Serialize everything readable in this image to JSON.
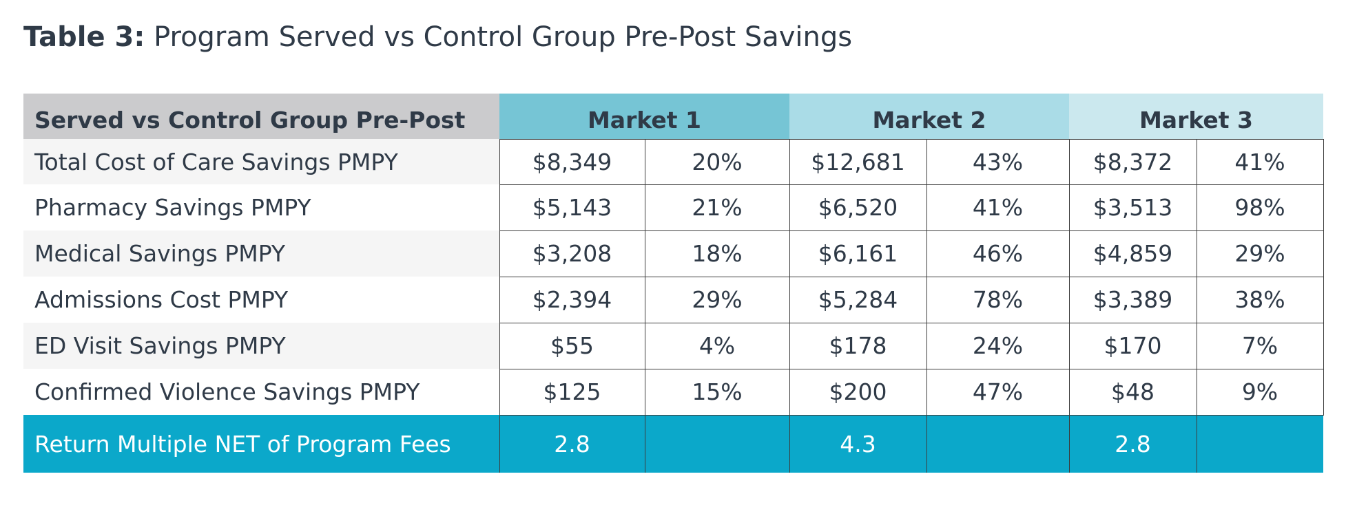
{
  "title": {
    "label": "Table 3:",
    "text": "Program Served vs Control Group Pre-Post Savings"
  },
  "table": {
    "corner_header": "Served vs Control Group Pre-Post",
    "markets": [
      "Market 1",
      "Market 2",
      "Market 3"
    ],
    "header_colors": [
      "#76c5d5",
      "#aadce7",
      "#cbe8ee"
    ],
    "rows": [
      {
        "label": "Total Cost of Care Savings PMPY",
        "m1_value": "$8,349",
        "m1_pct": "20%",
        "m2_value": "$12,681",
        "m2_pct": "43%",
        "m3_value": "$8,372",
        "m3_pct": "41%"
      },
      {
        "label": "Pharmacy Savings PMPY",
        "m1_value": "$5,143",
        "m1_pct": "21%",
        "m2_value": "$6,520",
        "m2_pct": "41%",
        "m3_value": "$3,513",
        "m3_pct": "98%"
      },
      {
        "label": "Medical Savings PMPY",
        "m1_value": "$3,208",
        "m1_pct": "18%",
        "m2_value": "$6,161",
        "m2_pct": "46%",
        "m3_value": "$4,859",
        "m3_pct": "29%"
      },
      {
        "label": "Admissions Cost PMPY",
        "m1_value": "$2,394",
        "m1_pct": "29%",
        "m2_value": "$5,284",
        "m2_pct": "78%",
        "m3_value": "$3,389",
        "m3_pct": "38%"
      },
      {
        "label": "ED Visit Savings PMPY",
        "m1_value": "$55",
        "m1_pct": "4%",
        "m2_value": "$178",
        "m2_pct": "24%",
        "m3_value": "$170",
        "m3_pct": "7%"
      },
      {
        "label": "Confirmed Violence Savings PMPY",
        "m1_value": "$125",
        "m1_pct": "15%",
        "m2_value": "$200",
        "m2_pct": "47%",
        "m3_value": "$48",
        "m3_pct": "9%"
      }
    ],
    "total_row": {
      "label": "Return Multiple NET of Program Fees",
      "m1_value": "2.8",
      "m2_value": "4.3",
      "m3_value": "2.8"
    },
    "total_color": "#0ba8ca"
  }
}
